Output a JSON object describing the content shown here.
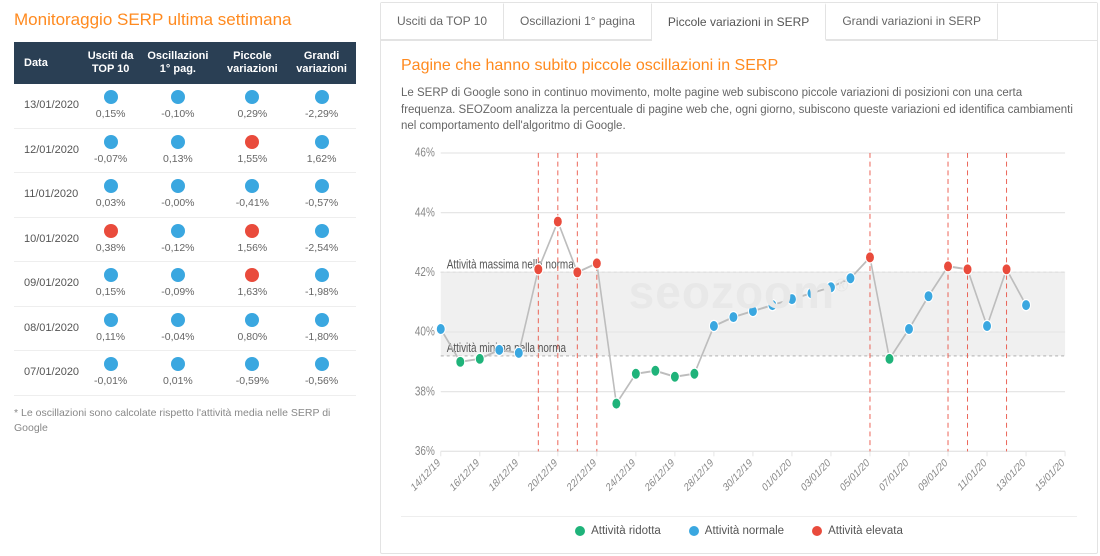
{
  "colors": {
    "accent": "#ff8a1f",
    "header_bg": "#2a3f54",
    "blue": "#3aa7e0",
    "red": "#e94b3c",
    "green": "#1fb37a",
    "grid": "#e6e6e6",
    "band": "#f0f0f0",
    "band_line": "#bdbdbd",
    "watermark": "#e8e8e8"
  },
  "left": {
    "title": "Monitoraggio SERP ultima settimana",
    "headers": [
      "Data",
      "Usciti da TOP 10",
      "Oscillazioni 1° pag.",
      "Piccole variazioni",
      "Grandi variazioni"
    ],
    "rows": [
      {
        "date": "13/01/2020",
        "cells": [
          {
            "v": "0,15%",
            "c": "blue"
          },
          {
            "v": "-0,10%",
            "c": "blue"
          },
          {
            "v": "0,29%",
            "c": "blue"
          },
          {
            "v": "-2,29%",
            "c": "blue"
          }
        ]
      },
      {
        "date": "12/01/2020",
        "cells": [
          {
            "v": "-0,07%",
            "c": "blue"
          },
          {
            "v": "0,13%",
            "c": "blue"
          },
          {
            "v": "1,55%",
            "c": "red"
          },
          {
            "v": "1,62%",
            "c": "blue"
          }
        ]
      },
      {
        "date": "11/01/2020",
        "cells": [
          {
            "v": "0,03%",
            "c": "blue"
          },
          {
            "v": "-0,00%",
            "c": "blue"
          },
          {
            "v": "-0,41%",
            "c": "blue"
          },
          {
            "v": "-0,57%",
            "c": "blue"
          }
        ]
      },
      {
        "date": "10/01/2020",
        "cells": [
          {
            "v": "0,38%",
            "c": "red"
          },
          {
            "v": "-0,12%",
            "c": "blue"
          },
          {
            "v": "1,56%",
            "c": "red"
          },
          {
            "v": "-2,54%",
            "c": "blue"
          }
        ]
      },
      {
        "date": "09/01/2020",
        "cells": [
          {
            "v": "0,15%",
            "c": "blue"
          },
          {
            "v": "-0,09%",
            "c": "blue"
          },
          {
            "v": "1,63%",
            "c": "red"
          },
          {
            "v": "-1,98%",
            "c": "blue"
          }
        ]
      },
      {
        "date": "08/01/2020",
        "cells": [
          {
            "v": "0,11%",
            "c": "blue"
          },
          {
            "v": "-0,04%",
            "c": "blue"
          },
          {
            "v": "0,80%",
            "c": "blue"
          },
          {
            "v": "-1,80%",
            "c": "blue"
          }
        ]
      },
      {
        "date": "07/01/2020",
        "cells": [
          {
            "v": "-0,01%",
            "c": "blue"
          },
          {
            "v": "0,01%",
            "c": "blue"
          },
          {
            "v": "-0,59%",
            "c": "blue"
          },
          {
            "v": "-0,56%",
            "c": "blue"
          }
        ]
      }
    ],
    "footnote": "* Le oscillazioni sono calcolate rispetto l'attività media nelle SERP di Google"
  },
  "tabs": [
    {
      "label": "Usciti da TOP 10",
      "active": false
    },
    {
      "label": "Oscillazioni 1° pagina",
      "active": false
    },
    {
      "label": "Piccole variazioni in SERP",
      "active": true
    },
    {
      "label": "Grandi variazioni in SERP",
      "active": false
    }
  ],
  "section": {
    "title": "Pagine che hanno subito piccole oscillazioni in SERP",
    "desc": "Le SERP di Google sono in continuo movimento, molte pagine web subiscono piccole variazioni di posizioni con una certa frequenza. SEOZoom analizza la percentuale di pagine web che, ogni giorno, subiscono queste variazioni ed identifica cambiamenti nel comportamento dell'algoritmo di Google."
  },
  "watermark": "seozoom",
  "chart": {
    "type": "line",
    "ylim": [
      36,
      46
    ],
    "ytick_step": 2,
    "ylabels": [
      "36%",
      "38%",
      "40%",
      "42%",
      "44%",
      "46%"
    ],
    "band": {
      "min": 39.2,
      "max": 42.0,
      "label_max": "Attività massima nella norma",
      "label_min": "Attività minima nella norma"
    },
    "xlabels": [
      "14/12/19",
      "16/12/19",
      "18/12/19",
      "20/12/19",
      "22/12/19",
      "24/12/19",
      "26/12/19",
      "28/12/19",
      "30/12/19",
      "01/01/20",
      "03/01/20",
      "05/01/20",
      "07/01/20",
      "09/01/20",
      "11/01/20",
      "13/01/20",
      "15/01/20"
    ],
    "points": [
      {
        "x": "14/12/19",
        "y": 40.1,
        "c": "blue"
      },
      {
        "x": "15/12/19",
        "y": 39.0,
        "c": "green"
      },
      {
        "x": "16/12/19",
        "y": 39.1,
        "c": "green"
      },
      {
        "x": "17/12/19",
        "y": 39.4,
        "c": "blue"
      },
      {
        "x": "18/12/19",
        "y": 39.3,
        "c": "blue"
      },
      {
        "x": "19/12/19",
        "y": 42.1,
        "c": "red"
      },
      {
        "x": "20/12/19",
        "y": 43.7,
        "c": "red"
      },
      {
        "x": "21/12/19",
        "y": 42.0,
        "c": "red"
      },
      {
        "x": "22/12/19",
        "y": 42.3,
        "c": "red"
      },
      {
        "x": "23/12/19",
        "y": 37.6,
        "c": "green"
      },
      {
        "x": "24/12/19",
        "y": 38.6,
        "c": "green"
      },
      {
        "x": "25/12/19",
        "y": 38.7,
        "c": "green"
      },
      {
        "x": "26/12/19",
        "y": 38.5,
        "c": "green"
      },
      {
        "x": "27/12/19",
        "y": 38.6,
        "c": "green"
      },
      {
        "x": "28/12/19",
        "y": 40.2,
        "c": "blue"
      },
      {
        "x": "29/12/19",
        "y": 40.5,
        "c": "blue"
      },
      {
        "x": "30/12/19",
        "y": 40.7,
        "c": "blue"
      },
      {
        "x": "31/12/19",
        "y": 40.9,
        "c": "blue"
      },
      {
        "x": "01/01/20",
        "y": 41.1,
        "c": "blue"
      },
      {
        "x": "02/01/20",
        "y": 41.3,
        "c": "blue"
      },
      {
        "x": "03/01/20",
        "y": 41.5,
        "c": "blue"
      },
      {
        "x": "04/01/20",
        "y": 41.8,
        "c": "blue"
      },
      {
        "x": "05/01/20",
        "y": 42.5,
        "c": "red"
      },
      {
        "x": "06/01/20",
        "y": 39.1,
        "c": "green"
      },
      {
        "x": "07/01/20",
        "y": 40.1,
        "c": "blue"
      },
      {
        "x": "08/01/20",
        "y": 41.2,
        "c": "blue"
      },
      {
        "x": "09/01/20",
        "y": 42.2,
        "c": "red"
      },
      {
        "x": "10/01/20",
        "y": 42.1,
        "c": "red"
      },
      {
        "x": "11/01/20",
        "y": 40.2,
        "c": "blue"
      },
      {
        "x": "12/01/20",
        "y": 42.1,
        "c": "red"
      },
      {
        "x": "13/01/20",
        "y": 40.9,
        "c": "blue"
      }
    ],
    "legend": [
      {
        "label": "Attività ridotta",
        "c": "green"
      },
      {
        "label": "Attività normale",
        "c": "blue"
      },
      {
        "label": "Attività elevata",
        "c": "red"
      }
    ],
    "line_color": "#bdbdbd",
    "marker_radius": 4.5,
    "red_vline_dash": "4,3"
  }
}
